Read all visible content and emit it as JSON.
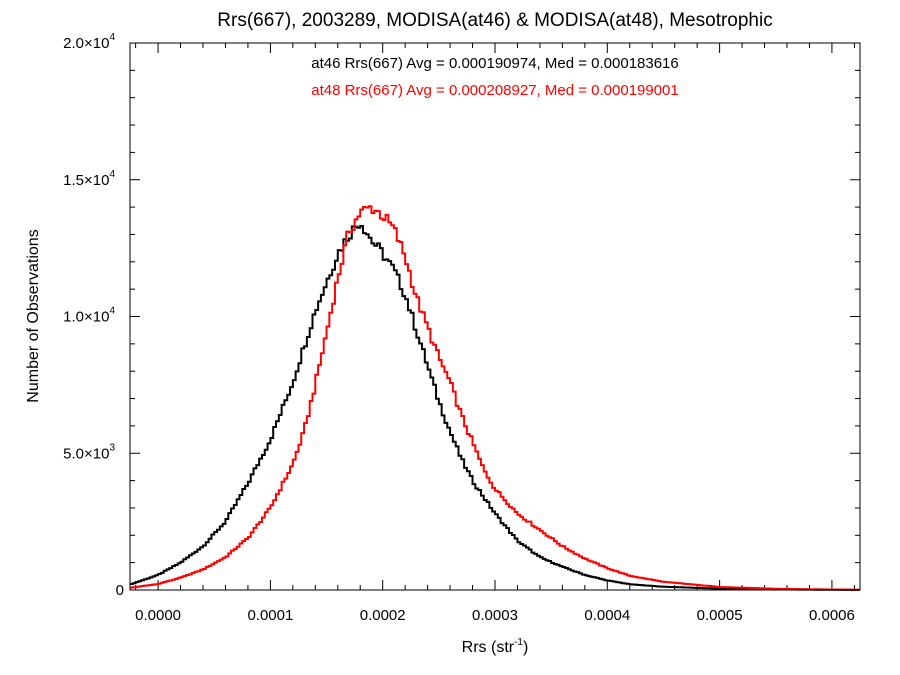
{
  "chart_data": {
    "type": "line",
    "title": "Rrs(667), 2003289, MODISA(at46) & MODISA(at48), Mesotrophic",
    "xlabel_main": "Rrs (str",
    "xlabel_sup": "-1",
    "xlabel_tail": ")",
    "ylabel": "Number of Observations",
    "xlim": [
      -2.5e-05,
      0.000625
    ],
    "ylim": [
      0,
      20000
    ],
    "x_ticks": [
      0.0,
      0.0001,
      0.0002,
      0.0003,
      0.0004,
      0.0005,
      0.0006
    ],
    "x_tick_labels": [
      "0.0000",
      "0.0001",
      "0.0002",
      "0.0003",
      "0.0004",
      "0.0005",
      "0.0006"
    ],
    "y_ticks": [
      0,
      5000,
      10000,
      15000,
      20000
    ],
    "y_tick_labels": [
      {
        "mant": "0",
        "exp": ""
      },
      {
        "mant": "5.0×10",
        "exp": "3"
      },
      {
        "mant": "1.0×10",
        "exp": "4"
      },
      {
        "mant": "1.5×10",
        "exp": "4"
      },
      {
        "mant": "2.0×10",
        "exp": "4"
      }
    ],
    "legend": [
      {
        "text": "at46 Rrs(667) Avg = 0.000190974, Med = 0.000183616",
        "color": "#000000"
      },
      {
        "text": "at48 Rrs(667) Avg = 0.000208927, Med = 0.000199001",
        "color": "#ff0000"
      }
    ],
    "legend_placement": "top-center",
    "series": [
      {
        "color": "#000000",
        "points": [
          [
            -2.5e-05,
            200
          ],
          [
            0.0,
            550
          ],
          [
            2e-05,
            1000
          ],
          [
            4e-05,
            1600
          ],
          [
            6e-05,
            2500
          ],
          [
            8e-05,
            3900
          ],
          [
            0.0001,
            5500
          ],
          [
            0.00012,
            7600
          ],
          [
            0.00014,
            10200
          ],
          [
            0.00016,
            12300
          ],
          [
            0.00017,
            13000
          ],
          [
            0.00018,
            13500
          ],
          [
            0.00019,
            12800
          ],
          [
            0.0002,
            12300
          ],
          [
            0.00021,
            11700
          ],
          [
            0.00022,
            10800
          ],
          [
            0.00023,
            9500
          ],
          [
            0.00024,
            8200
          ],
          [
            0.00025,
            6900
          ],
          [
            0.00026,
            5800
          ],
          [
            0.00027,
            4800
          ],
          [
            0.00028,
            4000
          ],
          [
            0.0003,
            2800
          ],
          [
            0.00032,
            1800
          ],
          [
            0.00034,
            1200
          ],
          [
            0.00036,
            850
          ],
          [
            0.00038,
            550
          ],
          [
            0.0004,
            350
          ],
          [
            0.00042,
            210
          ],
          [
            0.00045,
            120
          ],
          [
            0.0005,
            50
          ],
          [
            0.00055,
            20
          ],
          [
            0.0006,
            8
          ],
          [
            0.000625,
            5
          ]
        ]
      },
      {
        "color": "#ff0000",
        "points": [
          [
            -2.5e-05,
            80
          ],
          [
            0.0,
            220
          ],
          [
            2e-05,
            450
          ],
          [
            4e-05,
            750
          ],
          [
            6e-05,
            1200
          ],
          [
            8e-05,
            1900
          ],
          [
            0.0001,
            3000
          ],
          [
            0.00012,
            4600
          ],
          [
            0.00013,
            5800
          ],
          [
            0.00014,
            7500
          ],
          [
            0.00015,
            9400
          ],
          [
            0.00016,
            11400
          ],
          [
            0.00017,
            13100
          ],
          [
            0.00018,
            13800
          ],
          [
            0.00019,
            14000
          ],
          [
            0.0002,
            13700
          ],
          [
            0.00021,
            13200
          ],
          [
            0.00022,
            12200
          ],
          [
            0.00023,
            10700
          ],
          [
            0.00024,
            9600
          ],
          [
            0.00025,
            8500
          ],
          [
            0.00026,
            7600
          ],
          [
            0.00027,
            6400
          ],
          [
            0.00028,
            5400
          ],
          [
            0.00029,
            4400
          ],
          [
            0.0003,
            3700
          ],
          [
            0.00032,
            2800
          ],
          [
            0.00034,
            2200
          ],
          [
            0.00036,
            1600
          ],
          [
            0.00038,
            1150
          ],
          [
            0.0004,
            800
          ],
          [
            0.00042,
            520
          ],
          [
            0.00045,
            300
          ],
          [
            0.0005,
            110
          ],
          [
            0.00055,
            45
          ],
          [
            0.0006,
            18
          ],
          [
            0.000625,
            10
          ]
        ]
      }
    ]
  }
}
